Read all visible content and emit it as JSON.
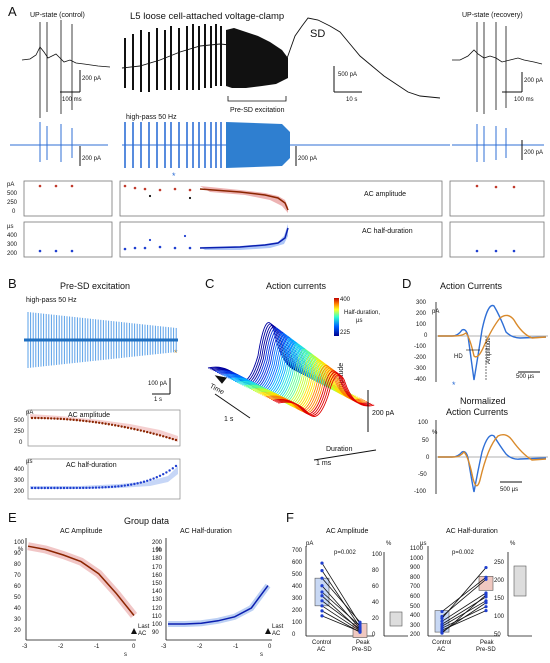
{
  "panels": {
    "A": {
      "letter": "A",
      "left_title": "UP-state (control)",
      "center_title": "L5 loose cell-attached voltage-clamp",
      "right_title": "UP-state (recovery)",
      "sd_label": "SD",
      "scale_left_y": "200 pA",
      "scale_left_x": "100 ms",
      "scale_center_y": "500 pA",
      "scale_center_x": "10 s",
      "scale_right_y": "200 pA",
      "scale_right_x": "100 ms",
      "bracket_label": "Pre-SD excitation",
      "hp_label": "high-pass 50 Hz",
      "scale_hp_left": "200 pA",
      "scale_hp_center": "200 pA",
      "scale_hp_right": "200 pA",
      "asterisk": "*",
      "amp_unit": "pA",
      "amp_ticks": [
        "500",
        "250",
        "0"
      ],
      "amp_label": "AC amplitude",
      "hd_unit": "µs",
      "hd_ticks": [
        "400",
        "300",
        "200"
      ],
      "hd_label": "AC half-duration"
    },
    "B": {
      "letter": "B",
      "title": "Pre-SD excitation",
      "hp_label": "high-pass 50 Hz",
      "asterisk": "*",
      "scale_y": "100 pA",
      "scale_x": "1 s",
      "amp_unit": "pA",
      "amp_ticks": [
        "500",
        "250",
        "0"
      ],
      "amp_label": "AC amplitude",
      "hd_unit": "µs",
      "hd_ticks": [
        "400",
        "300",
        "200"
      ],
      "hd_label": "AC half-duration"
    },
    "C": {
      "letter": "C",
      "title": "Action currents",
      "cbar_top": "400",
      "cbar_bottom": "225",
      "cbar_label": "Half-duration,",
      "cbar_unit": "µs",
      "time_label": "Time",
      "time_scale": "1 s",
      "amp_label": "Amplitude",
      "amp_scale": "200 pA",
      "dur_label": "Duration",
      "dur_scale": "1 ms"
    },
    "D": {
      "letter": "D",
      "title1": "Action Currents",
      "unit1": "pA",
      "ticks1": [
        "300",
        "200",
        "100",
        "0",
        "-100",
        "-200",
        "-300",
        "-400"
      ],
      "hd_label": "HD",
      "amp_label": "Amplitude",
      "scale1": "500 µs",
      "title2a": "Normalized",
      "title2b": "Action Currents",
      "unit2": "%",
      "ticks2": [
        "100",
        "50",
        "0",
        "-50",
        "-100"
      ],
      "scale2": "500 µs",
      "asterisk": "*",
      "colors": {
        "control": "#2f6fd6",
        "pre_sd": "#d98a2b"
      }
    },
    "E": {
      "letter": "E",
      "group_title": "Group data",
      "left_title": "AC Amplitude",
      "right_title": "AC Half-duration",
      "left_unit": "%",
      "right_unit": "%",
      "left_yticks": [
        "100",
        "90",
        "80",
        "70",
        "60",
        "50",
        "40",
        "30",
        "20"
      ],
      "right_yticks": [
        "200",
        "190",
        "180",
        "170",
        "160",
        "150",
        "140",
        "130",
        "120",
        "110",
        "100",
        "90"
      ],
      "xticks": [
        "-3",
        "-2",
        "-1",
        "0"
      ],
      "xunit": "s",
      "last_ac_1": "Last",
      "last_ac_2": "AC"
    },
    "F": {
      "letter": "F",
      "left_title": "AC Amplitude",
      "right_title": "AC Half-duration",
      "left_unit": "pA",
      "left_pct": "%",
      "right_unit": "µs",
      "right_pct": "%",
      "left_yticks": [
        "700",
        "600",
        "500",
        "400",
        "300",
        "200",
        "100",
        "0"
      ],
      "left_pticks": [
        "100",
        "80",
        "60",
        "40",
        "20",
        "0"
      ],
      "right_yticks": [
        "1100",
        "1000",
        "900",
        "800",
        "700",
        "600",
        "500",
        "400",
        "300",
        "200"
      ],
      "right_pticks": [
        "250",
        "200",
        "150",
        "100",
        "50"
      ],
      "p_left": "p=0.002",
      "p_right": "p=0.002",
      "cat1a": "Control",
      "cat1b": "AC",
      "cat2a": "Peak",
      "cat2b": "Pre-SD"
    }
  },
  "chart_data": [
    {
      "type": "line",
      "title": "AC Amplitude",
      "xlabel": "s",
      "ylabel": "%",
      "xlim": [
        -3,
        0
      ],
      "ylim": [
        20,
        100
      ],
      "x": [
        -3.0,
        -2.5,
        -2.0,
        -1.5,
        -1.0,
        -0.5,
        0.0
      ],
      "series": [
        {
          "values": [
            98,
            95,
            90,
            84,
            73,
            55,
            35
          ]
        }
      ]
    },
    {
      "type": "line",
      "title": "AC Half-duration",
      "xlabel": "s",
      "ylabel": "%",
      "xlim": [
        -3,
        0
      ],
      "ylim": [
        90,
        200
      ],
      "x": [
        -3.0,
        -2.5,
        -2.0,
        -1.5,
        -1.0,
        -0.5,
        0.0
      ],
      "series": [
        {
          "values": [
            100,
            100,
            101,
            104,
            109,
            120,
            148
          ]
        }
      ]
    },
    {
      "type": "scatter",
      "title": "AC Amplitude",
      "ylabel": "pA",
      "categories": [
        "Control AC",
        "Peak Pre-SD"
      ],
      "ylim": [
        0,
        700
      ],
      "pairs": [
        [
          580,
          95
        ],
        [
          520,
          70
        ],
        [
          460,
          110
        ],
        [
          400,
          60
        ],
        [
          350,
          80
        ],
        [
          320,
          45
        ],
        [
          280,
          55
        ],
        [
          240,
          40
        ],
        [
          200,
          30
        ],
        [
          160,
          35
        ]
      ]
    },
    {
      "type": "scatter",
      "title": "AC Half-duration",
      "ylabel": "µs",
      "categories": [
        "Control AC",
        "Peak Pre-SD"
      ],
      "ylim": [
        200,
        1100
      ],
      "pairs": [
        [
          450,
          800
        ],
        [
          400,
          780
        ],
        [
          380,
          900
        ],
        [
          350,
          640
        ],
        [
          320,
          600
        ],
        [
          300,
          560
        ],
        [
          280,
          500
        ],
        [
          260,
          460
        ],
        [
          240,
          540
        ],
        [
          230,
          620
        ]
      ]
    }
  ]
}
